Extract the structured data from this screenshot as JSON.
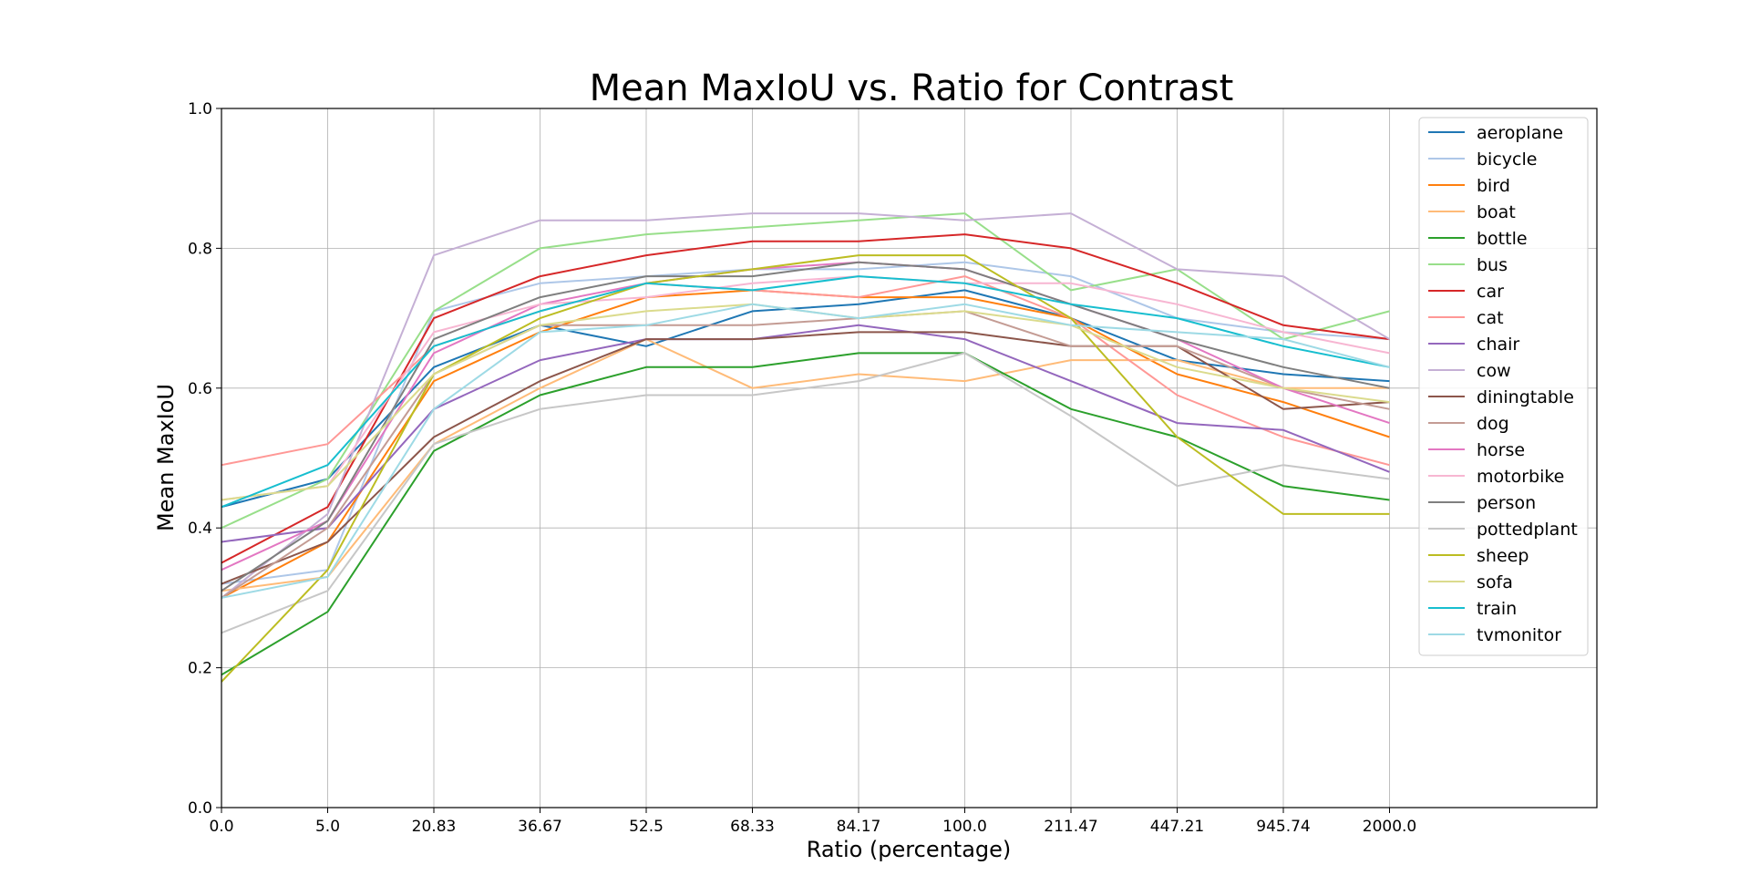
{
  "chart_data": {
    "type": "line",
    "title": "Mean MaxIoU vs. Ratio for Contrast",
    "xlabel": "Ratio (percentage)",
    "ylabel": "Mean MaxIoU",
    "x": [
      "0.0",
      "5.0",
      "20.83",
      "36.67",
      "52.5",
      "68.33",
      "84.17",
      "100.0",
      "211.47",
      "447.21",
      "945.74",
      "2000.0"
    ],
    "ylim": [
      0,
      1
    ],
    "yticks": [
      "0.0",
      "0.2",
      "0.4",
      "0.6",
      "0.8",
      "1.0"
    ],
    "grid": true,
    "legend_position": "top-right",
    "series": [
      {
        "name": "aeroplane",
        "color": "#1f77b4",
        "values": [
          0.43,
          0.47,
          0.63,
          0.69,
          0.66,
          0.71,
          0.72,
          0.74,
          0.7,
          0.64,
          0.62,
          0.61
        ]
      },
      {
        "name": "bicycle",
        "color": "#aec7e8",
        "values": [
          0.32,
          0.34,
          0.71,
          0.75,
          0.76,
          0.77,
          0.77,
          0.78,
          0.76,
          0.7,
          0.68,
          0.67
        ]
      },
      {
        "name": "bird",
        "color": "#ff7f0e",
        "values": [
          0.3,
          0.38,
          0.61,
          0.68,
          0.73,
          0.74,
          0.73,
          0.73,
          0.7,
          0.62,
          0.58,
          0.53
        ]
      },
      {
        "name": "boat",
        "color": "#ffbb78",
        "values": [
          0.31,
          0.33,
          0.52,
          0.6,
          0.67,
          0.6,
          0.62,
          0.61,
          0.64,
          0.64,
          0.6,
          0.6
        ]
      },
      {
        "name": "bottle",
        "color": "#2ca02c",
        "values": [
          0.19,
          0.28,
          0.51,
          0.59,
          0.63,
          0.63,
          0.65,
          0.65,
          0.57,
          0.53,
          0.46,
          0.44
        ]
      },
      {
        "name": "bus",
        "color": "#98df8a",
        "values": [
          0.4,
          0.47,
          0.71,
          0.8,
          0.82,
          0.83,
          0.84,
          0.85,
          0.74,
          0.77,
          0.67,
          0.71
        ]
      },
      {
        "name": "car",
        "color": "#d62728",
        "values": [
          0.35,
          0.43,
          0.7,
          0.76,
          0.79,
          0.81,
          0.81,
          0.82,
          0.8,
          0.75,
          0.69,
          0.67
        ]
      },
      {
        "name": "cat",
        "color": "#ff9896",
        "values": [
          0.49,
          0.52,
          0.66,
          0.71,
          0.75,
          0.74,
          0.73,
          0.76,
          0.7,
          0.59,
          0.53,
          0.49
        ]
      },
      {
        "name": "chair",
        "color": "#9467bd",
        "values": [
          0.38,
          0.4,
          0.57,
          0.64,
          0.67,
          0.67,
          0.69,
          0.67,
          0.61,
          0.55,
          0.54,
          0.48
        ]
      },
      {
        "name": "cow",
        "color": "#c5b0d5",
        "values": [
          0.3,
          0.42,
          0.79,
          0.84,
          0.84,
          0.85,
          0.85,
          0.84,
          0.85,
          0.77,
          0.76,
          0.67
        ]
      },
      {
        "name": "diningtable",
        "color": "#8c564b",
        "values": [
          0.32,
          0.38,
          0.53,
          0.61,
          0.67,
          0.67,
          0.68,
          0.68,
          0.66,
          0.66,
          0.57,
          0.58
        ]
      },
      {
        "name": "dog",
        "color": "#c49c94",
        "values": [
          0.3,
          0.4,
          0.62,
          0.69,
          0.69,
          0.69,
          0.7,
          0.71,
          0.66,
          0.66,
          0.6,
          0.57
        ]
      },
      {
        "name": "horse",
        "color": "#e377c2",
        "values": [
          0.34,
          0.41,
          0.65,
          0.72,
          0.75,
          0.77,
          0.78,
          0.77,
          0.72,
          0.67,
          0.6,
          0.55
        ]
      },
      {
        "name": "motorbike",
        "color": "#f7b6d2",
        "values": [
          0.44,
          0.46,
          0.68,
          0.72,
          0.73,
          0.75,
          0.76,
          0.75,
          0.75,
          0.72,
          0.68,
          0.65
        ]
      },
      {
        "name": "person",
        "color": "#7f7f7f",
        "values": [
          0.31,
          0.41,
          0.67,
          0.73,
          0.76,
          0.76,
          0.78,
          0.77,
          0.72,
          0.67,
          0.63,
          0.6
        ]
      },
      {
        "name": "pottedplant",
        "color": "#c7c7c7",
        "values": [
          0.25,
          0.31,
          0.52,
          0.57,
          0.59,
          0.59,
          0.61,
          0.65,
          0.56,
          0.46,
          0.49,
          0.47
        ]
      },
      {
        "name": "sheep",
        "color": "#bcbd22",
        "values": [
          0.18,
          0.34,
          0.62,
          0.7,
          0.75,
          0.77,
          0.79,
          0.79,
          0.7,
          0.53,
          0.42,
          0.42
        ]
      },
      {
        "name": "sofa",
        "color": "#dbdb8d",
        "values": [
          0.44,
          0.46,
          0.62,
          0.69,
          0.71,
          0.72,
          0.7,
          0.71,
          0.69,
          0.63,
          0.6,
          0.58
        ]
      },
      {
        "name": "train",
        "color": "#17becf",
        "values": [
          0.43,
          0.49,
          0.66,
          0.71,
          0.75,
          0.74,
          0.76,
          0.75,
          0.72,
          0.7,
          0.66,
          0.63
        ]
      },
      {
        "name": "tvmonitor",
        "color": "#9edae5",
        "values": [
          0.3,
          0.33,
          0.57,
          0.68,
          0.69,
          0.72,
          0.7,
          0.72,
          0.69,
          0.68,
          0.67,
          0.63
        ]
      }
    ]
  }
}
